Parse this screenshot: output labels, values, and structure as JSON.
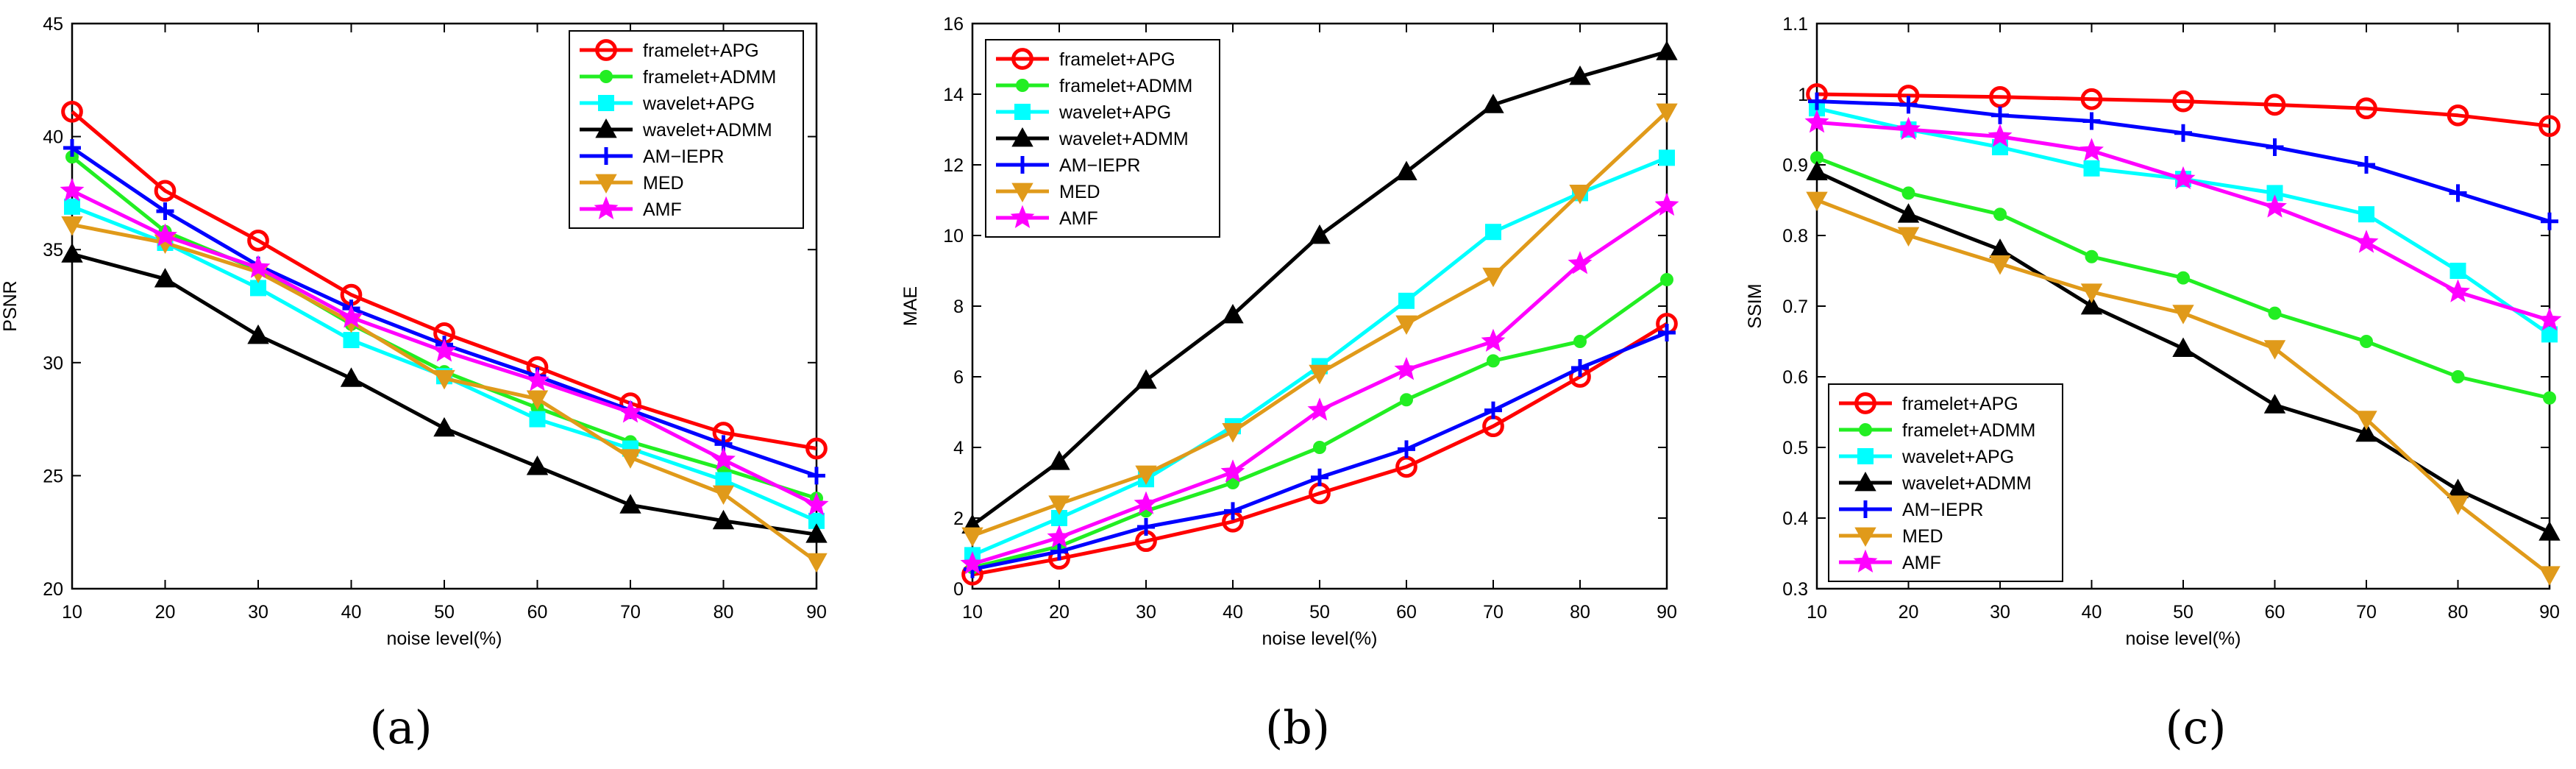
{
  "figure": {
    "panels": [
      {
        "caption": "(a)"
      },
      {
        "caption": "(b)"
      },
      {
        "caption": "(c)"
      }
    ]
  },
  "colors": {
    "framelet+APG": "#ff0000",
    "framelet+ADMM": "#22ee22",
    "wavelet+APG": "#00ffff",
    "wavelet+ADMM": "#000000",
    "AM−IEPR": "#0000ff",
    "MED": "#e09a1a",
    "AMF": "#ff00ff"
  },
  "chart_data": [
    {
      "type": "line",
      "title": "",
      "xlabel": "noise level(%)",
      "ylabel": "PSNR",
      "x": [
        10,
        20,
        30,
        40,
        50,
        60,
        70,
        80,
        90
      ],
      "xlim": [
        10,
        90
      ],
      "ylim": [
        20,
        45
      ],
      "yticks": [
        20,
        25,
        30,
        35,
        40,
        45
      ],
      "grid": false,
      "legend_position": "top-right",
      "series": [
        {
          "name": "framelet+APG",
          "marker": "circle",
          "values": [
            41.1,
            37.6,
            35.4,
            33.0,
            31.3,
            29.8,
            28.2,
            26.9,
            26.2
          ]
        },
        {
          "name": "framelet+ADMM",
          "marker": "dot",
          "values": [
            39.1,
            35.8,
            34.1,
            31.7,
            29.6,
            28.0,
            26.5,
            25.3,
            24.0
          ]
        },
        {
          "name": "wavelet+APG",
          "marker": "square",
          "values": [
            36.9,
            35.3,
            33.3,
            31.0,
            29.4,
            27.5,
            26.2,
            24.8,
            23.0
          ]
        },
        {
          "name": "wavelet+ADMM",
          "marker": "triangle-up",
          "values": [
            34.8,
            33.7,
            31.2,
            29.3,
            27.1,
            25.4,
            23.7,
            23.0,
            22.4
          ]
        },
        {
          "name": "AM−IEPR",
          "marker": "plus",
          "values": [
            39.5,
            36.7,
            34.3,
            32.4,
            30.8,
            29.4,
            27.9,
            26.4,
            25.0
          ]
        },
        {
          "name": "MED",
          "marker": "triangle-down",
          "values": [
            36.1,
            35.3,
            34.0,
            31.8,
            29.3,
            28.4,
            25.8,
            24.2,
            21.2
          ]
        },
        {
          "name": "AMF",
          "marker": "star",
          "values": [
            37.6,
            35.6,
            34.2,
            32.0,
            30.5,
            29.2,
            27.8,
            25.7,
            23.7
          ]
        }
      ]
    },
    {
      "type": "line",
      "title": "",
      "xlabel": "noise level(%)",
      "ylabel": "MAE",
      "x": [
        10,
        20,
        30,
        40,
        50,
        60,
        70,
        80,
        90
      ],
      "xlim": [
        10,
        90
      ],
      "ylim": [
        0,
        16
      ],
      "yticks": [
        0,
        2,
        4,
        6,
        8,
        10,
        12,
        14,
        16
      ],
      "grid": false,
      "legend_position": "top-left",
      "series": [
        {
          "name": "framelet+APG",
          "marker": "circle",
          "values": [
            0.4,
            0.85,
            1.35,
            1.9,
            2.7,
            3.45,
            4.6,
            6.0,
            7.5
          ]
        },
        {
          "name": "framelet+ADMM",
          "marker": "dot",
          "values": [
            0.6,
            1.2,
            2.2,
            3.0,
            4.0,
            5.35,
            6.45,
            7.0,
            8.75
          ]
        },
        {
          "name": "wavelet+APG",
          "marker": "square",
          "values": [
            0.95,
            2.0,
            3.1,
            4.6,
            6.3,
            8.15,
            10.1,
            11.2,
            12.2
          ]
        },
        {
          "name": "wavelet+ADMM",
          "marker": "triangle-up",
          "values": [
            1.8,
            3.6,
            5.9,
            7.75,
            10.0,
            11.8,
            13.7,
            14.5,
            15.2
          ]
        },
        {
          "name": "AM−IEPR",
          "marker": "plus",
          "values": [
            0.55,
            1.05,
            1.75,
            2.2,
            3.15,
            3.95,
            5.05,
            6.25,
            7.25
          ]
        },
        {
          "name": "MED",
          "marker": "triangle-down",
          "values": [
            1.5,
            2.4,
            3.25,
            4.45,
            6.1,
            7.5,
            8.85,
            11.2,
            13.5
          ]
        },
        {
          "name": "AMF",
          "marker": "star",
          "values": [
            0.7,
            1.45,
            2.4,
            3.3,
            5.05,
            6.2,
            7.0,
            9.2,
            10.85
          ]
        }
      ]
    },
    {
      "type": "line",
      "title": "",
      "xlabel": "noise level(%)",
      "ylabel": "SSIM",
      "x": [
        10,
        20,
        30,
        40,
        50,
        60,
        70,
        80,
        90
      ],
      "xlim": [
        10,
        90
      ],
      "ylim": [
        0.3,
        1.1
      ],
      "yticks": [
        0.3,
        0.4,
        0.5,
        0.6,
        0.7,
        0.8,
        0.9,
        1.0,
        1.1
      ],
      "grid": false,
      "legend_position": "bottom-left",
      "series": [
        {
          "name": "framelet+APG",
          "marker": "circle",
          "values": [
            1.0,
            0.998,
            0.996,
            0.993,
            0.99,
            0.985,
            0.98,
            0.97,
            0.955
          ]
        },
        {
          "name": "framelet+ADMM",
          "marker": "dot",
          "values": [
            0.91,
            0.86,
            0.83,
            0.77,
            0.74,
            0.69,
            0.65,
            0.6,
            0.57
          ]
        },
        {
          "name": "wavelet+APG",
          "marker": "square",
          "values": [
            0.98,
            0.95,
            0.925,
            0.895,
            0.88,
            0.86,
            0.83,
            0.75,
            0.66
          ]
        },
        {
          "name": "wavelet+ADMM",
          "marker": "triangle-up",
          "values": [
            0.89,
            0.83,
            0.78,
            0.7,
            0.64,
            0.56,
            0.52,
            0.44,
            0.38
          ]
        },
        {
          "name": "AM−IEPR",
          "marker": "plus",
          "values": [
            0.99,
            0.985,
            0.97,
            0.962,
            0.945,
            0.925,
            0.9,
            0.86,
            0.82
          ]
        },
        {
          "name": "MED",
          "marker": "triangle-down",
          "values": [
            0.85,
            0.8,
            0.76,
            0.72,
            0.69,
            0.64,
            0.54,
            0.42,
            0.32
          ]
        },
        {
          "name": "AMF",
          "marker": "star",
          "values": [
            0.96,
            0.95,
            0.94,
            0.92,
            0.88,
            0.84,
            0.79,
            0.72,
            0.68
          ]
        }
      ]
    }
  ]
}
